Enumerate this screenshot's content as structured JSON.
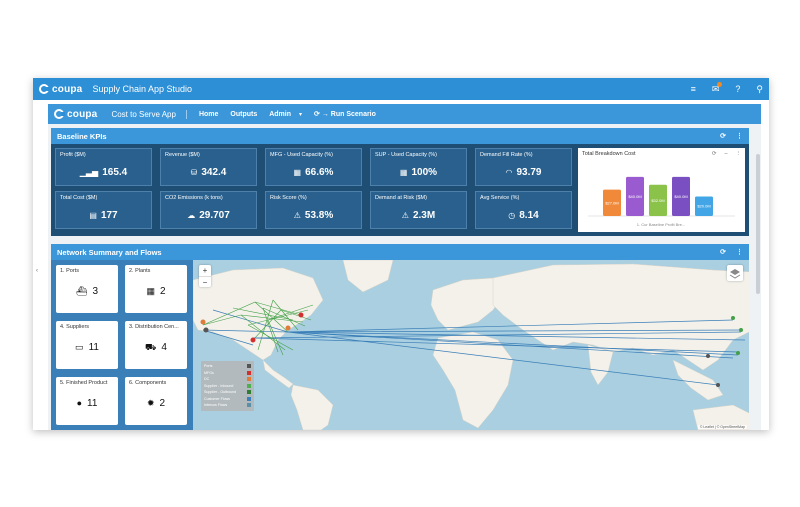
{
  "topbar": {
    "brand": "coupa",
    "title": "Supply Chain App Studio"
  },
  "navbar": {
    "brand": "coupa",
    "app": "Cost to Serve App",
    "items": [
      "Home",
      "Outputs",
      "Admin"
    ],
    "run": "Run Scenario"
  },
  "kpis": {
    "title": "Baseline KPIs",
    "items": [
      {
        "label": "Profit ($M)",
        "value": "165.4",
        "icon": "bar-chart-icon"
      },
      {
        "label": "Revenue ($M)",
        "value": "342.4",
        "icon": "coins-icon"
      },
      {
        "label": "MFG - Used Capacity (%)",
        "value": "66.6%",
        "icon": "factory-icon"
      },
      {
        "label": "SUP - Used Capacity (%)",
        "value": "100%",
        "icon": "factory-icon"
      },
      {
        "label": "Demand Fill Rate (%)",
        "value": "93.79",
        "icon": "gauge-icon"
      },
      {
        "label": "Total Cost ($M)",
        "value": "177",
        "icon": "calculator-icon"
      },
      {
        "label": "CO2 Emissions (k tons)",
        "value": "29.707",
        "icon": "cloud-icon"
      },
      {
        "label": "Risk Score (%)",
        "value": "53.8%",
        "icon": "warning-icon"
      },
      {
        "label": "Demand at Risk ($M)",
        "value": "2.3M",
        "icon": "warning-icon"
      },
      {
        "label": "Avg Service (%)",
        "value": "8.14",
        "icon": "clock-icon"
      }
    ]
  },
  "chart_data": {
    "type": "bar",
    "title": "Total Breakdown Cost",
    "xlabel": "1. Cur Baseline Profit Bre...",
    "data_labels": [
      "$27.0M",
      "$40.0M",
      "$32.0M",
      "$40.0M",
      "$20.0M"
    ],
    "values": [
      27,
      40,
      32,
      40,
      20
    ],
    "colors": [
      "#f08a3a",
      "#9a5bd0",
      "#8bc34a",
      "#7a4fc2",
      "#42a5e6"
    ],
    "ylim": [
      0,
      45
    ]
  },
  "network": {
    "title": "Network Summary and Flows",
    "cards": [
      {
        "label": "1. Ports",
        "value": "3",
        "icon": "ship-icon"
      },
      {
        "label": "2. Plants",
        "value": "2",
        "icon": "factory-icon"
      },
      {
        "label": "4. Suppliers",
        "value": "11",
        "icon": "supplier-icon"
      },
      {
        "label": "3. Distribution Cen...",
        "value": "4",
        "icon": "truck-icon"
      },
      {
        "label": "5. Finished Product",
        "value": "11",
        "icon": "dot-icon"
      },
      {
        "label": "6. Components",
        "value": "2",
        "icon": "gear-icon"
      }
    ],
    "legend": [
      {
        "label": "Ports",
        "color": "#555555"
      },
      {
        "label": "MFGs",
        "color": "#d32f2f"
      },
      {
        "label": "DC",
        "color": "#e07b39"
      },
      {
        "label": "Supplier - Inbound",
        "color": "#4caf50"
      },
      {
        "label": "Supplier - Outbound",
        "color": "#2e7d32"
      },
      {
        "label": "Customer Flows",
        "color": "#3b7fb8"
      },
      {
        "label": "Intercos Flows",
        "color": "#5a8fa8"
      }
    ],
    "attribution": "© Leaflet | © OpenStreetMap"
  }
}
